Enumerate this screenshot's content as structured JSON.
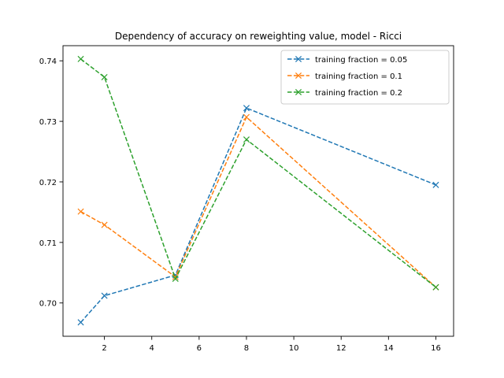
{
  "chart_data": {
    "type": "line",
    "title": "Dependency of accuracy on reweighting value, model - Ricci",
    "xlabel": "",
    "ylabel": "",
    "x": [
      1,
      2,
      5,
      8,
      16
    ],
    "xlim": [
      0.25,
      16.75
    ],
    "ylim": [
      0.6945,
      0.7425
    ],
    "xticks": [
      2,
      4,
      6,
      8,
      10,
      12,
      14,
      16
    ],
    "yticks": [
      0.7,
      0.71,
      0.72,
      0.73,
      0.74
    ],
    "ytick_labels": [
      "0.70",
      "0.71",
      "0.72",
      "0.73",
      "0.74"
    ],
    "grid": false,
    "legend_position": "upper right",
    "line_style": "dashed",
    "marker": "x",
    "series": [
      {
        "name": "training fraction = 0.05",
        "color": "#1f77b4",
        "values": [
          0.6968,
          0.7012,
          0.7046,
          0.7322,
          0.7195
        ]
      },
      {
        "name": "training fraction = 0.1",
        "color": "#ff7f0e",
        "values": [
          0.7151,
          0.7129,
          0.7043,
          0.7307,
          0.7026
        ]
      },
      {
        "name": "training fraction = 0.2",
        "color": "#2ca02c",
        "values": [
          0.7403,
          0.7373,
          0.704,
          0.727,
          0.7026
        ]
      }
    ]
  }
}
